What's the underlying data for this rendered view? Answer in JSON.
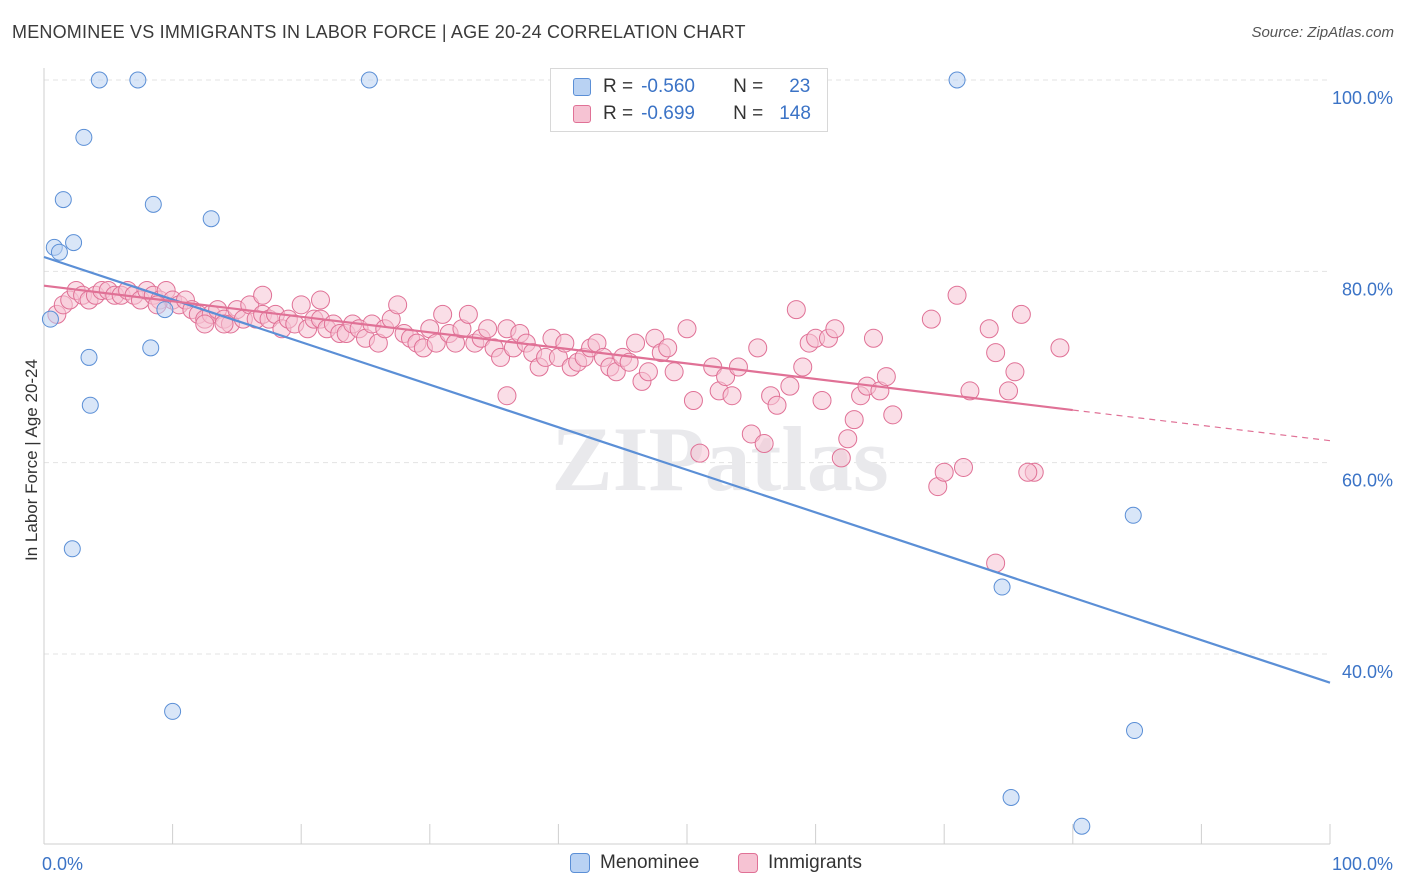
{
  "chart_data": {
    "type": "scatter",
    "title": "MENOMINEE VS IMMIGRANTS IN LABOR FORCE | AGE 20-24 CORRELATION CHART",
    "source": "Source: ZipAtlas.com",
    "ylabel": "In Labor Force | Age 20-24",
    "xlim": [
      0,
      100
    ],
    "ylim": [
      20,
      102
    ],
    "x_tick_labels": [
      "0.0%",
      "100.0%"
    ],
    "y_ticks": [
      {
        "value": 100,
        "label": "100.0%"
      },
      {
        "value": 80,
        "label": "80.0%"
      },
      {
        "value": 60,
        "label": "60.0%"
      },
      {
        "value": 40,
        "label": "40.0%"
      }
    ],
    "watermark": "ZIPatlas",
    "legend": {
      "rows": [
        {
          "r_label": "R =",
          "r_value": "-0.560",
          "n_label": "N =",
          "n_value": "23"
        },
        {
          "r_label": "R =",
          "r_value": "-0.699",
          "n_label": "N =",
          "n_value": "148"
        }
      ]
    },
    "series": [
      {
        "name": "Menominee",
        "color": "#5b8fd6",
        "fill": "#b9d2f3",
        "trend": {
          "x0": 0,
          "y0": 81.5,
          "x1": 100,
          "y1": 37
        },
        "points": [
          [
            0.5,
            75
          ],
          [
            0.8,
            82.5
          ],
          [
            1.2,
            82
          ],
          [
            1.5,
            87.5
          ],
          [
            2.3,
            83
          ],
          [
            3.1,
            94
          ],
          [
            3.5,
            71
          ],
          [
            3.6,
            66
          ],
          [
            4.3,
            100
          ],
          [
            7.3,
            100
          ],
          [
            8.3,
            72
          ],
          [
            8.5,
            87
          ],
          [
            9.4,
            76
          ],
          [
            10,
            34
          ],
          [
            13,
            85.5
          ],
          [
            25.3,
            100
          ],
          [
            71,
            100
          ],
          [
            2.2,
            51
          ],
          [
            74.5,
            47
          ],
          [
            84.8,
            32
          ],
          [
            75.2,
            25
          ],
          [
            80.7,
            22
          ],
          [
            84.7,
            54.5
          ]
        ]
      },
      {
        "name": "Immigrants",
        "color": "#e07196",
        "fill": "#f6c3d3",
        "trend": {
          "x0": 0,
          "y0": 78.5,
          "x1": 80,
          "y1": 65.5
        },
        "trend_dashed": {
          "x0": 80,
          "y0": 65.5,
          "x1": 100,
          "y1": 62.3
        },
        "points": [
          [
            1,
            75.5
          ],
          [
            1.5,
            76.5
          ],
          [
            2,
            77
          ],
          [
            2.5,
            78
          ],
          [
            3,
            77.5
          ],
          [
            3.5,
            77
          ],
          [
            4,
            77.5
          ],
          [
            4.5,
            78
          ],
          [
            5,
            78
          ],
          [
            5.5,
            77.5
          ],
          [
            6,
            77.5
          ],
          [
            6.5,
            78
          ],
          [
            7,
            77.5
          ],
          [
            7.5,
            77
          ],
          [
            8,
            78
          ],
          [
            8.5,
            77.5
          ],
          [
            9,
            77
          ],
          [
            9.5,
            78
          ],
          [
            10,
            77
          ],
          [
            10.5,
            76.5
          ],
          [
            11,
            77
          ],
          [
            11.5,
            76
          ],
          [
            12,
            75.5
          ],
          [
            12.5,
            75
          ],
          [
            13,
            75.5
          ],
          [
            13.5,
            76
          ],
          [
            14,
            75
          ],
          [
            14.5,
            74.5
          ],
          [
            15,
            76
          ],
          [
            15.5,
            75
          ],
          [
            16,
            76.5
          ],
          [
            16.5,
            75
          ],
          [
            17,
            75.5
          ],
          [
            17.5,
            75
          ],
          [
            18,
            75.5
          ],
          [
            18.5,
            74
          ],
          [
            19,
            75
          ],
          [
            19.5,
            74.5
          ],
          [
            20,
            76.5
          ],
          [
            20.5,
            74
          ],
          [
            21,
            75
          ],
          [
            21.5,
            75
          ],
          [
            22,
            74
          ],
          [
            22.5,
            74.5
          ],
          [
            23,
            73.5
          ],
          [
            23.5,
            73.5
          ],
          [
            24,
            74.5
          ],
          [
            24.5,
            74
          ],
          [
            25,
            73
          ],
          [
            25.5,
            74.5
          ],
          [
            26,
            72.5
          ],
          [
            26.5,
            74
          ],
          [
            27,
            75
          ],
          [
            27.5,
            76.5
          ],
          [
            28,
            73.5
          ],
          [
            28.5,
            73
          ],
          [
            29,
            72.5
          ],
          [
            29.5,
            72
          ],
          [
            30,
            74
          ],
          [
            30.5,
            72.5
          ],
          [
            31,
            75.5
          ],
          [
            31.5,
            73.5
          ],
          [
            32,
            72.5
          ],
          [
            32.5,
            74
          ],
          [
            33,
            75.5
          ],
          [
            33.5,
            72.5
          ],
          [
            34,
            73
          ],
          [
            34.5,
            74
          ],
          [
            35,
            72
          ],
          [
            35.5,
            71
          ],
          [
            36,
            74
          ],
          [
            36.5,
            72
          ],
          [
            37,
            73.5
          ],
          [
            37.5,
            72.5
          ],
          [
            38,
            71.5
          ],
          [
            38.5,
            70
          ],
          [
            39,
            71
          ],
          [
            39.5,
            73
          ],
          [
            40,
            71
          ],
          [
            40.5,
            72.5
          ],
          [
            41,
            70
          ],
          [
            41.5,
            70.5
          ],
          [
            42,
            71
          ],
          [
            42.5,
            72
          ],
          [
            43,
            72.5
          ],
          [
            43.5,
            71
          ],
          [
            44,
            70
          ],
          [
            44.5,
            69.5
          ],
          [
            45,
            71
          ],
          [
            45.5,
            70.5
          ],
          [
            46,
            72.5
          ],
          [
            46.5,
            68.5
          ],
          [
            47,
            69.5
          ],
          [
            47.5,
            73
          ],
          [
            48,
            71.5
          ],
          [
            48.5,
            72
          ],
          [
            49,
            69.5
          ],
          [
            50,
            74
          ],
          [
            50.5,
            66.5
          ],
          [
            51,
            61
          ],
          [
            52,
            70
          ],
          [
            52.5,
            67.5
          ],
          [
            53,
            69
          ],
          [
            53.5,
            67
          ],
          [
            54,
            70
          ],
          [
            55,
            63
          ],
          [
            55.5,
            72
          ],
          [
            56,
            62
          ],
          [
            56.5,
            67
          ],
          [
            57,
            66
          ],
          [
            58,
            68
          ],
          [
            58.5,
            76
          ],
          [
            59,
            70
          ],
          [
            59.5,
            72.5
          ],
          [
            60,
            73
          ],
          [
            60.5,
            66.5
          ],
          [
            61,
            73
          ],
          [
            61.5,
            74
          ],
          [
            62,
            60.5
          ],
          [
            62.5,
            62.5
          ],
          [
            63,
            64.5
          ],
          [
            63.5,
            67
          ],
          [
            64,
            68
          ],
          [
            64.5,
            73
          ],
          [
            65,
            67.5
          ],
          [
            65.5,
            69
          ],
          [
            66,
            65
          ],
          [
            71,
            77.5
          ],
          [
            72,
            67.5
          ],
          [
            73.5,
            74
          ],
          [
            74,
            71.5
          ],
          [
            75,
            67.5
          ],
          [
            75.5,
            69.5
          ],
          [
            76,
            75.5
          ],
          [
            77,
            59
          ],
          [
            79,
            72
          ],
          [
            69,
            75
          ],
          [
            8.8,
            76.5
          ],
          [
            12.5,
            74.5
          ],
          [
            17,
            77.5
          ],
          [
            21.5,
            77
          ],
          [
            36,
            67
          ],
          [
            69.5,
            57.5
          ],
          [
            70,
            59
          ],
          [
            71.5,
            59.5
          ],
          [
            74,
            49.5
          ],
          [
            76.5,
            59
          ],
          [
            14,
            74.5
          ]
        ]
      }
    ],
    "bottom_legend": [
      "Menominee",
      "Immigrants"
    ]
  }
}
